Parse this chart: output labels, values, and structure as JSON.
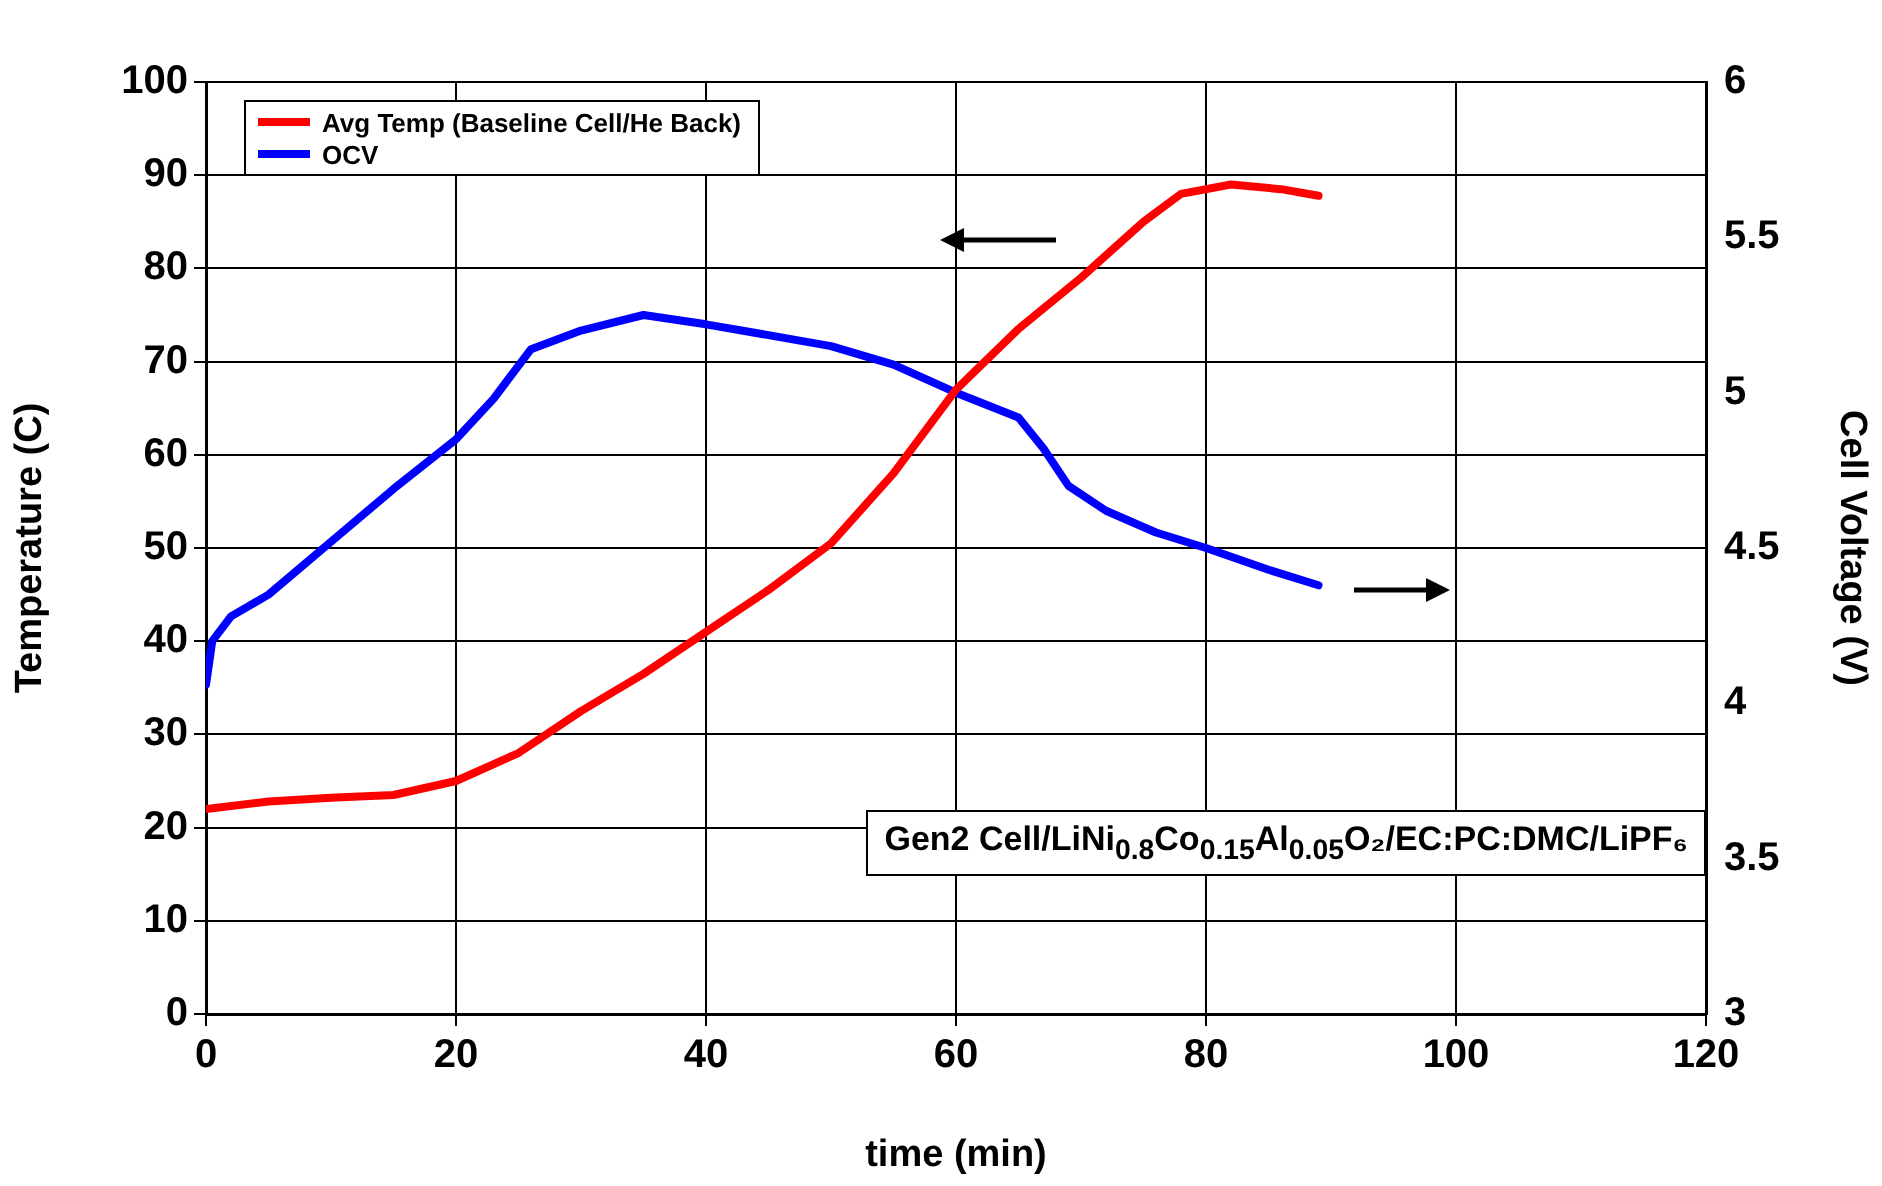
{
  "chart_data": {
    "type": "line",
    "xlabel": "time (min)",
    "ylabel": "Temperature (C)",
    "y2label": "Cell Voltage (V)",
    "annotations": [
      "Gen2 Cell/LiNi$_{0.8}$Co$_{0.15}$Al$_{0.05}$O₂/EC:PC:DMC/LiPF₆"
    ],
    "series": [
      {
        "name": "Avg Temp (Baseline Cell/He Back)",
        "color": "#ff0000",
        "x": [
          0,
          5,
          10,
          15,
          20,
          25,
          30,
          35,
          40,
          45,
          50,
          55,
          60,
          65,
          70,
          75,
          78,
          82,
          86,
          89
        ],
        "values": [
          22,
          22.8,
          23.2,
          23.5,
          25,
          28,
          32.5,
          36.5,
          41,
          45.5,
          50.5,
          58,
          67,
          73.5,
          79,
          85,
          88,
          89,
          88.5,
          87.8
        ]
      },
      {
        "name": "OCV",
        "color": "#0000ff",
        "axis": "y2",
        "x": [
          0,
          0.5,
          2,
          5,
          10,
          15,
          20,
          23,
          26,
          30,
          35,
          40,
          50,
          55,
          60,
          65,
          67,
          69,
          72,
          76,
          80,
          85,
          89
        ],
        "values": [
          4.06,
          4.2,
          4.28,
          4.35,
          4.52,
          4.69,
          4.85,
          4.98,
          5.14,
          5.2,
          5.25,
          5.22,
          5.15,
          5.09,
          5,
          4.92,
          4.82,
          4.7,
          4.62,
          4.55,
          4.5,
          4.43,
          4.38
        ]
      }
    ],
    "xlim": [
      0,
      120
    ],
    "xticks": [
      0,
      20,
      40,
      60,
      80,
      100,
      120
    ],
    "ylim": [
      0,
      100
    ],
    "yticks": [
      0,
      10,
      20,
      30,
      40,
      50,
      60,
      70,
      80,
      90,
      100
    ],
    "y2lim": [
      3,
      6
    ],
    "y2ticks": [
      3,
      3.5,
      4,
      4.5,
      5,
      5.5,
      6
    ],
    "grid": true,
    "legend": "top left",
    "marker": "none",
    "line_style": "solid"
  }
}
